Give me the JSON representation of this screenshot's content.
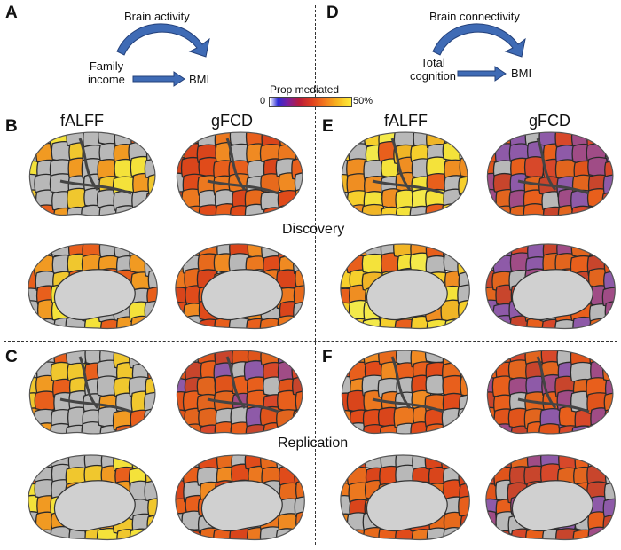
{
  "panels": {
    "a": "A",
    "b": "B",
    "c": "C",
    "d": "D",
    "e": "E",
    "f": "F"
  },
  "diagram_left": {
    "mediator": "Brain activity",
    "exposure_line1": "Family",
    "exposure_line2": "income",
    "outcome": "BMI"
  },
  "diagram_right": {
    "mediator": "Brain connectivity",
    "exposure_line1": "Total",
    "exposure_line2": "cognition",
    "outcome": "BMI"
  },
  "colorbar": {
    "title": "Prop mediated",
    "min_label": "0",
    "max_label": "50%"
  },
  "columns": {
    "left_falff": "fALFF",
    "left_gfcd": "gFCD",
    "right_falff": "fALFF",
    "right_gfcd": "gFCD"
  },
  "rows": {
    "discovery": "Discovery",
    "replication": "Replication"
  },
  "colors": {
    "arrow": "#3f6bb5",
    "arrow_stroke": "#23407a",
    "cortex_gray": "#b8b8b8",
    "medial_wall": "#d0d0d0",
    "yellow": "#f4e23a",
    "orange": "#e85f1c",
    "purple": "#8e5aa8"
  },
  "brains": {
    "discovery_left_falff_lateral": "mixed_yellow",
    "discovery_left_gfcd_lateral": "orange",
    "discovery_left_falff_medial": "mixed_yellow",
    "discovery_left_gfcd_medial": "orange",
    "discovery_right_falff_lateral": "yellow",
    "discovery_right_gfcd_lateral": "orange_purple",
    "discovery_right_falff_medial": "yellow",
    "discovery_right_gfcd_medial": "orange_purple",
    "replication_left_falff_lateral": "mixed_yellow",
    "replication_left_gfcd_lateral": "orange_purple",
    "replication_left_falff_medial": "mixed_yellow",
    "replication_left_gfcd_medial": "orange",
    "replication_right_falff_lateral": "orange",
    "replication_right_gfcd_lateral": "orange_purple",
    "replication_right_falff_medial": "orange",
    "replication_right_gfcd_medial": "orange_purple"
  }
}
